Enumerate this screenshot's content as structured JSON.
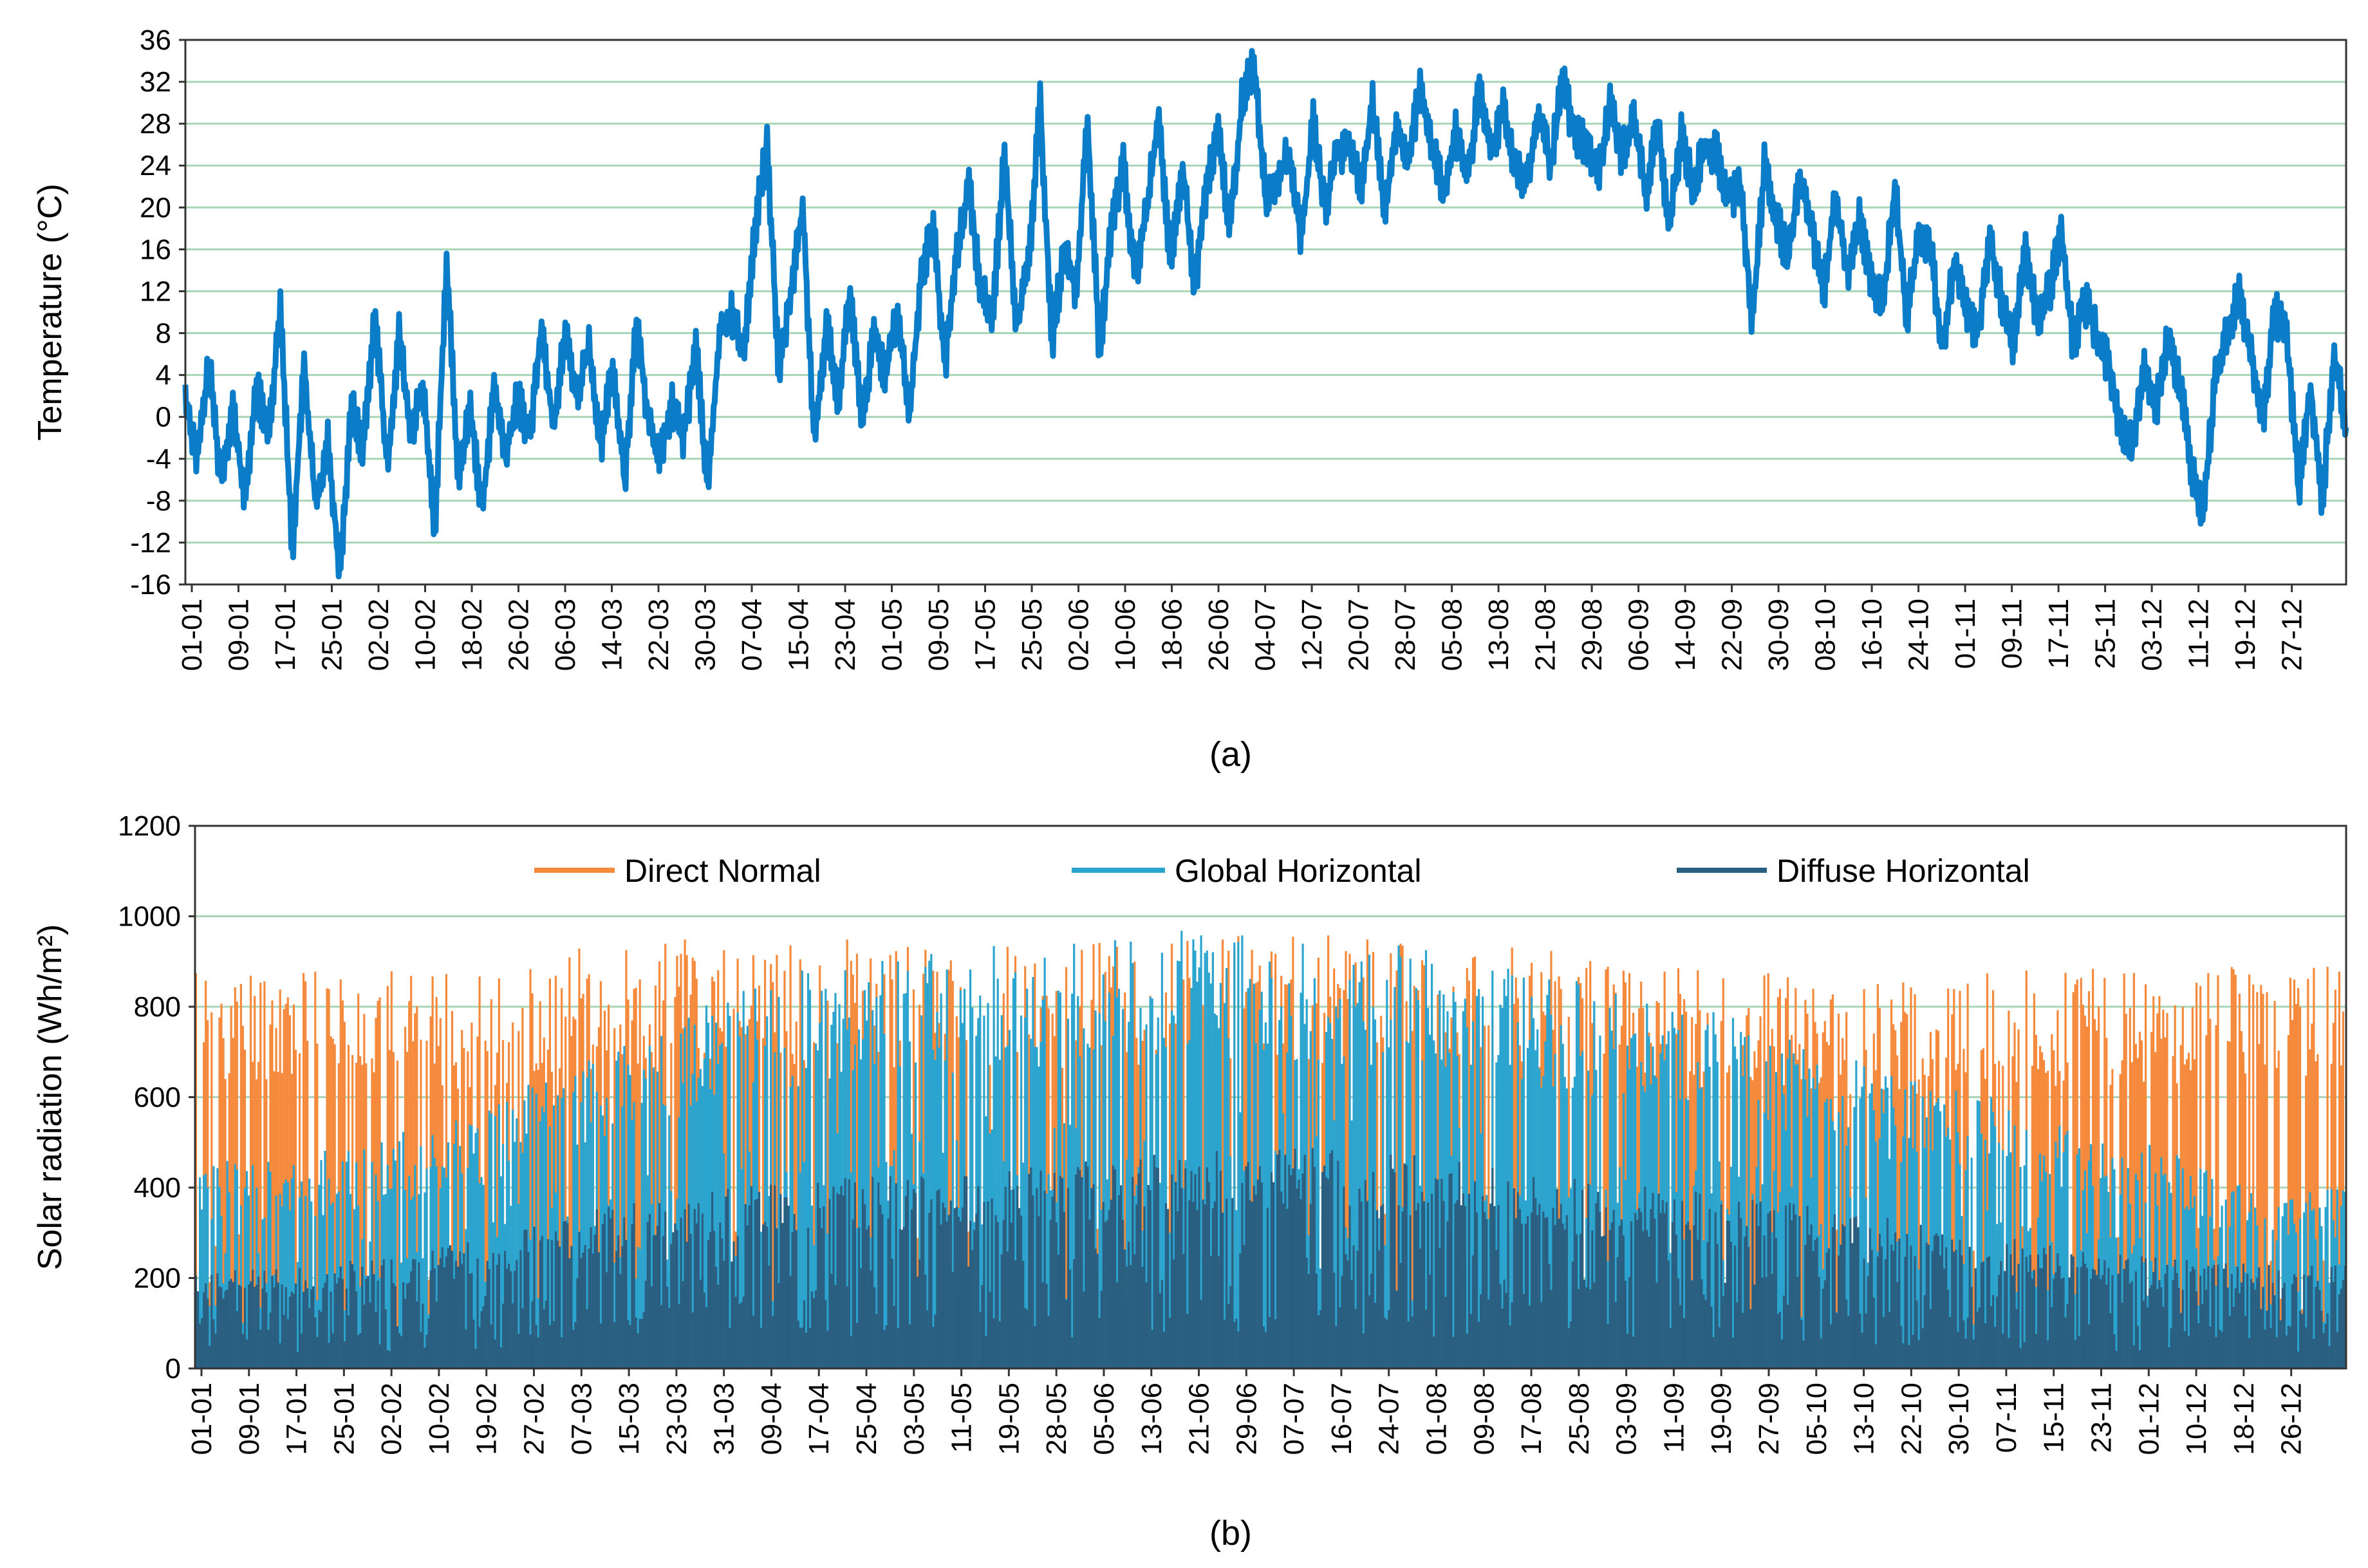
{
  "colors": {
    "temperature": "#0a7cc8",
    "direct_normal": "#f58a3d",
    "global_horizontal": "#2ba4cf",
    "diffuse_horizontal": "#2a5f82",
    "gridline": "#a8d5b5",
    "frame": "#333333"
  },
  "chart_data": [
    {
      "id": "temperature",
      "type": "line",
      "caption": "(a)",
      "ylabel": "Temperature (°C)",
      "xlabel": "",
      "ylim": [
        -16,
        36
      ],
      "yticks": [
        -16,
        -12,
        -8,
        -4,
        0,
        4,
        8,
        12,
        16,
        20,
        24,
        28,
        32,
        36
      ],
      "x_range_days": [
        1,
        365
      ],
      "xtick_labels": [
        "01-01",
        "09-01",
        "17-01",
        "25-01",
        "02-02",
        "10-02",
        "18-02",
        "26-02",
        "06-03",
        "14-03",
        "22-03",
        "30-03",
        "07-04",
        "15-04",
        "23-04",
        "01-05",
        "09-05",
        "17-05",
        "25-05",
        "02-06",
        "10-06",
        "18-06",
        "26-06",
        "04-07",
        "12-07",
        "20-07",
        "28-07",
        "05-08",
        "13-08",
        "21-08",
        "29-08",
        "06-09",
        "14-09",
        "22-09",
        "30-09",
        "08-10",
        "16-10",
        "24-10",
        "01-11",
        "09-11",
        "17-11",
        "25-11",
        "03-12",
        "11-12",
        "19-12",
        "27-12"
      ],
      "grid": "horizontal",
      "series": [
        {
          "name": "Temperature",
          "day_of_year": [
            1,
            3,
            5,
            7,
            9,
            11,
            13,
            15,
            17,
            19,
            21,
            23,
            25,
            27,
            29,
            31,
            33,
            35,
            37,
            39,
            41,
            43,
            45,
            47,
            49,
            51,
            53,
            55,
            57,
            59,
            61,
            63,
            65,
            67,
            69,
            71,
            73,
            75,
            77,
            79,
            81,
            83,
            85,
            87,
            89,
            91,
            93,
            95,
            97,
            99,
            101,
            103,
            105,
            107,
            109,
            111,
            113,
            115,
            117,
            119,
            121,
            123,
            125,
            127,
            129,
            131,
            133,
            135,
            137,
            139,
            141,
            143,
            145,
            147,
            149,
            151,
            153,
            155,
            157,
            159,
            161,
            163,
            165,
            167,
            169,
            171,
            173,
            175,
            177,
            179,
            181,
            183,
            185,
            187,
            189,
            191,
            193,
            195,
            197,
            199,
            201,
            203,
            205,
            207,
            209,
            211,
            213,
            215,
            217,
            219,
            221,
            223,
            225,
            227,
            229,
            231,
            233,
            235,
            237,
            239,
            241,
            243,
            245,
            247,
            249,
            251,
            253,
            255,
            257,
            259,
            261,
            263,
            265,
            267,
            269,
            271,
            273,
            275,
            277,
            279,
            281,
            283,
            285,
            287,
            289,
            291,
            293,
            295,
            297,
            299,
            301,
            303,
            305,
            307,
            309,
            311,
            313,
            315,
            317,
            319,
            321,
            323,
            325,
            327,
            329,
            331,
            333,
            335,
            337,
            339,
            341,
            343,
            345,
            347,
            349,
            351,
            353,
            355,
            357,
            359,
            361,
            363,
            365
          ],
          "values": [
            2,
            -4,
            5,
            -6,
            1,
            -8,
            3,
            -2,
            11,
            -13,
            5,
            -9,
            -2,
            -15,
            1,
            -3,
            10,
            -5,
            8,
            -2,
            3,
            -11,
            15,
            -6,
            1,
            -9,
            3,
            -4,
            2,
            -2,
            9,
            -1,
            8,
            2,
            7,
            -3,
            5,
            -6,
            9,
            0,
            -4,
            1,
            -2,
            7,
            -7,
            8,
            10,
            6,
            18,
            26,
            4,
            12,
            20,
            -3,
            9,
            2,
            12,
            -1,
            8,
            4,
            10,
            0,
            14,
            18,
            5,
            16,
            22,
            12,
            10,
            25,
            9,
            14,
            30,
            7,
            16,
            12,
            28,
            6,
            18,
            24,
            13,
            20,
            29,
            14,
            24,
            12,
            22,
            27,
            18,
            30,
            34,
            21,
            23,
            25,
            17,
            28,
            20,
            25,
            26,
            22,
            30,
            19,
            28,
            24,
            32,
            26,
            21,
            27,
            23,
            31,
            25,
            30,
            24,
            22,
            29,
            24,
            32,
            27,
            26,
            23,
            30,
            25,
            29,
            21,
            28,
            18,
            27,
            22,
            26,
            25,
            21,
            22,
            9,
            24,
            19,
            15,
            23,
            18,
            12,
            21,
            14,
            19,
            13,
            11,
            22,
            9,
            18,
            16,
            6,
            15,
            10,
            8,
            17,
            11,
            7,
            16,
            9,
            12,
            18,
            7,
            11,
            8,
            5,
            -1,
            -3,
            5,
            1,
            8,
            3,
            -5,
            -9,
            4,
            8,
            12,
            6,
            0,
            10,
            8,
            -7,
            3,
            -8,
            6,
            -1
          ],
          "color_key": "temperature"
        }
      ]
    },
    {
      "id": "solar",
      "type": "area",
      "caption": "(b)",
      "ylabel": "Solar radiation (Wh/m²)",
      "xlabel": "",
      "ylim": [
        0,
        1200
      ],
      "yticks": [
        0,
        200,
        400,
        600,
        800,
        1000,
        1200
      ],
      "x_range_days": [
        1,
        365
      ],
      "xtick_labels": [
        "01-01",
        "09-01",
        "17-01",
        "25-01",
        "02-02",
        "10-02",
        "19-02",
        "27-02",
        "07-03",
        "15-03",
        "23-03",
        "31-03",
        "09-04",
        "17-04",
        "25-04",
        "03-05",
        "11-05",
        "19-05",
        "28-05",
        "05-06",
        "13-06",
        "21-06",
        "29-06",
        "07-07",
        "16-07",
        "24-07",
        "01-08",
        "09-08",
        "17-08",
        "25-08",
        "03-09",
        "11-09",
        "19-09",
        "27-09",
        "05-10",
        "13-10",
        "22-10",
        "30-10",
        "07-11",
        "15-11",
        "23-11",
        "01-12",
        "10-12",
        "18-12",
        "26-12"
      ],
      "grid": "horizontal",
      "legend": {
        "placement": "top",
        "entries": [
          "Direct Normal",
          "Global Horizontal",
          "Diffuse Horizontal"
        ]
      },
      "series": [
        {
          "name": "Direct Normal",
          "color_key": "direct_normal",
          "month_peak_envelope_x_month": [
            1,
            2,
            3,
            4,
            5,
            6,
            7,
            8,
            9,
            10,
            11,
            12
          ],
          "month_peak_envelope": [
            900,
            880,
            960,
            950,
            940,
            960,
            960,
            930,
            880,
            860,
            890,
            900
          ]
        },
        {
          "name": "Global Horizontal",
          "color_key": "global_horizontal",
          "month_peak_envelope_x_month": [
            1,
            2,
            3,
            4,
            5,
            6,
            7,
            8,
            9,
            10,
            11,
            12
          ],
          "month_peak_envelope": [
            460,
            560,
            760,
            900,
            940,
            970,
            960,
            870,
            800,
            650,
            550,
            400
          ]
        },
        {
          "name": "Diffuse Horizontal",
          "color_key": "diffuse_horizontal",
          "month_peak_envelope_x_month": [
            1,
            2,
            3,
            4,
            5,
            6,
            7,
            8,
            9,
            10,
            11,
            12
          ],
          "month_peak_envelope": [
            220,
            280,
            380,
            420,
            440,
            480,
            490,
            430,
            390,
            330,
            260,
            230
          ]
        }
      ]
    }
  ]
}
